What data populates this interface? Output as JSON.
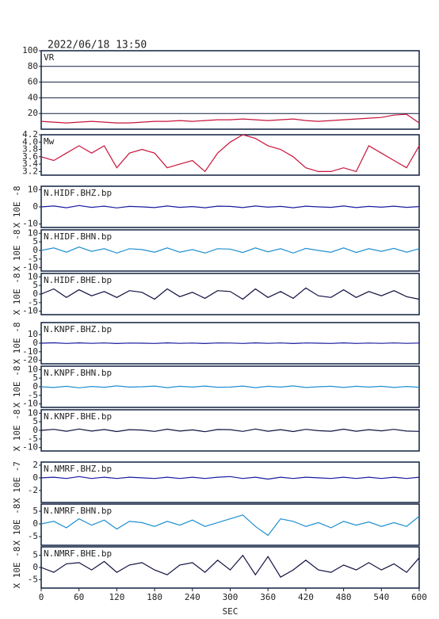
{
  "chart_data": [
    {
      "type": "line",
      "title": "2022/06/18 13:50",
      "xlim": [
        0,
        600
      ],
      "ylim": [
        0,
        100
      ],
      "yticks": [
        20,
        40,
        60,
        80,
        100
      ],
      "grid": true,
      "x": [
        0,
        20,
        40,
        60,
        80,
        100,
        120,
        140,
        160,
        180,
        200,
        220,
        240,
        260,
        280,
        300,
        320,
        340,
        360,
        380,
        400,
        420,
        440,
        460,
        480,
        500,
        520,
        540,
        560,
        580,
        600
      ],
      "series": [
        {
          "name": "VR",
          "color": "#c8143c",
          "values": [
            10,
            9,
            8,
            9,
            10,
            9,
            8,
            8,
            9,
            10,
            10,
            11,
            10,
            11,
            12,
            12,
            13,
            12,
            11,
            12,
            13,
            11,
            10,
            11,
            12,
            13,
            14,
            15,
            18,
            19,
            8
          ]
        }
      ]
    },
    {
      "type": "line",
      "xlim": [
        0,
        600
      ],
      "ylim": [
        3.1,
        4.2
      ],
      "yticks": [
        3.2,
        3.4,
        3.6,
        3.8,
        {
          "value": 4.0,
          "label": "4.0"
        },
        4.2
      ],
      "grid": false,
      "x": [
        0,
        20,
        40,
        60,
        80,
        100,
        120,
        140,
        160,
        180,
        200,
        220,
        240,
        260,
        280,
        300,
        320,
        340,
        360,
        380,
        400,
        420,
        440,
        460,
        480,
        500,
        520,
        540,
        560,
        580,
        600
      ],
      "series": [
        {
          "name": "Mw",
          "color": "#c8143c",
          "values": [
            3.6,
            3.5,
            3.7,
            3.9,
            3.7,
            3.9,
            3.3,
            3.7,
            3.8,
            3.7,
            3.3,
            3.4,
            3.5,
            3.2,
            3.7,
            4.0,
            4.2,
            4.1,
            3.9,
            3.8,
            3.6,
            3.3,
            3.2,
            3.2,
            3.3,
            3.2,
            3.9,
            3.7,
            3.5,
            3.3,
            3.9
          ]
        }
      ]
    },
    {
      "type": "line",
      "unit_label": "X 10E -8",
      "xlim": [
        0,
        600
      ],
      "ylim": [
        -12,
        12
      ],
      "yticks": [
        -10,
        0,
        10
      ],
      "grid": false,
      "x": [
        0,
        20,
        40,
        60,
        80,
        100,
        120,
        140,
        160,
        180,
        200,
        220,
        240,
        260,
        280,
        300,
        320,
        340,
        360,
        380,
        400,
        420,
        440,
        460,
        480,
        500,
        520,
        540,
        560,
        580,
        600
      ],
      "series": [
        {
          "name": "N.HIDF.BHZ.bp",
          "color": "#1a1aa0",
          "values": [
            0,
            0.5,
            -0.5,
            0.8,
            -0.3,
            0.4,
            -0.6,
            0.3,
            0,
            -0.4,
            0.5,
            -0.3,
            0.2,
            -0.5,
            0.4,
            0.3,
            -0.4,
            0.5,
            -0.2,
            0.3,
            -0.5,
            0.4,
            0,
            -0.3,
            0.5,
            -0.4,
            0.3,
            -0.2,
            0.4,
            -0.3,
            0.2
          ]
        }
      ]
    },
    {
      "type": "line",
      "unit_label": "X 10E -8",
      "xlim": [
        0,
        600
      ],
      "ylim": [
        -12,
        12
      ],
      "yticks": [
        -10,
        -5,
        0,
        5,
        10
      ],
      "grid": false,
      "x": [
        0,
        20,
        40,
        60,
        80,
        100,
        120,
        140,
        160,
        180,
        200,
        220,
        240,
        260,
        280,
        300,
        320,
        340,
        360,
        380,
        400,
        420,
        440,
        460,
        480,
        500,
        520,
        540,
        560,
        580,
        600
      ],
      "series": [
        {
          "name": "N.HIDF.BHN.bp",
          "color": "#2090d0",
          "values": [
            0,
            1.5,
            -1,
            2,
            -0.5,
            1,
            -1.5,
            1,
            0.5,
            -1,
            1.5,
            -1,
            0.5,
            -1.5,
            1,
            0.8,
            -1.2,
            1.5,
            -0.8,
            1,
            -1.5,
            1.2,
            0,
            -1,
            1.5,
            -1.2,
            1,
            -0.5,
            1.2,
            -1,
            1
          ]
        }
      ]
    },
    {
      "type": "line",
      "unit_label": "X 10E -8",
      "xlim": [
        0,
        600
      ],
      "ylim": [
        -12,
        12
      ],
      "yticks": [
        -10,
        -5,
        0,
        5,
        10
      ],
      "grid": false,
      "x": [
        0,
        20,
        40,
        60,
        80,
        100,
        120,
        140,
        160,
        180,
        200,
        220,
        240,
        260,
        280,
        300,
        320,
        340,
        360,
        380,
        400,
        420,
        440,
        460,
        480,
        500,
        520,
        540,
        560,
        580,
        600
      ],
      "series": [
        {
          "name": "N.HIDF.BHE.bp",
          "color": "#101040",
          "values": [
            0,
            3,
            -2,
            2.5,
            -1,
            1.5,
            -2,
            2,
            1,
            -3,
            3,
            -1.5,
            1,
            -2.5,
            2,
            1.5,
            -3,
            3,
            -2,
            1.5,
            -2.5,
            3.5,
            -1,
            -2,
            2.5,
            -2,
            1.5,
            -1,
            2,
            -1.5,
            -3
          ]
        }
      ]
    },
    {
      "type": "line",
      "unit_label": "X 10E -8",
      "xlim": [
        0,
        600
      ],
      "ylim": [
        -24,
        24
      ],
      "yticks": [
        -20,
        -10,
        0,
        10
      ],
      "grid": false,
      "x": [
        0,
        20,
        40,
        60,
        80,
        100,
        120,
        140,
        160,
        180,
        200,
        220,
        240,
        260,
        280,
        300,
        320,
        340,
        360,
        380,
        400,
        420,
        440,
        460,
        480,
        500,
        520,
        540,
        560,
        580,
        600
      ],
      "series": [
        {
          "name": "N.KNPF.BHZ.bp",
          "color": "#1a1aa0",
          "values": [
            0,
            0.5,
            -0.3,
            0.4,
            -0.2,
            0.3,
            -0.4,
            0.2,
            0,
            -0.3,
            0.4,
            -0.2,
            0.2,
            -0.4,
            0.3,
            0.2,
            -0.3,
            0.4,
            -0.2,
            0.3,
            -0.4,
            0.3,
            0,
            -0.3,
            0.4,
            -0.3,
            0.2,
            -0.2,
            0.3,
            -0.2,
            0.2
          ]
        }
      ]
    },
    {
      "type": "line",
      "unit_label": "X 10E -8",
      "xlim": [
        0,
        600
      ],
      "ylim": [
        -12,
        12
      ],
      "yticks": [
        -10,
        -5,
        0,
        5,
        10
      ],
      "grid": false,
      "x": [
        0,
        20,
        40,
        60,
        80,
        100,
        120,
        140,
        160,
        180,
        200,
        220,
        240,
        260,
        280,
        300,
        320,
        340,
        360,
        380,
        400,
        420,
        440,
        460,
        480,
        500,
        520,
        540,
        560,
        580,
        600
      ],
      "series": [
        {
          "name": "N.KNPF.BHN.bp",
          "color": "#2090d0",
          "values": [
            0,
            -0.4,
            0.3,
            -0.6,
            0.2,
            -0.3,
            0.5,
            -0.2,
            0,
            0.4,
            -0.5,
            0.3,
            -0.2,
            0.4,
            -0.3,
            -0.2,
            0.4,
            -0.5,
            0.3,
            -0.2,
            0.5,
            -0.4,
            0,
            0.3,
            -0.4,
            0.3,
            -0.2,
            0.3,
            -0.4,
            0.2,
            -0.3
          ]
        }
      ]
    },
    {
      "type": "line",
      "unit_label": "X 10E -8",
      "xlim": [
        0,
        600
      ],
      "ylim": [
        -12,
        12
      ],
      "yticks": [
        -10,
        -5,
        0,
        5,
        10
      ],
      "grid": false,
      "x": [
        0,
        20,
        40,
        60,
        80,
        100,
        120,
        140,
        160,
        180,
        200,
        220,
        240,
        260,
        280,
        300,
        320,
        340,
        360,
        380,
        400,
        420,
        440,
        460,
        480,
        500,
        520,
        540,
        560,
        580,
        600
      ],
      "series": [
        {
          "name": "N.KNPF.BHE.bp",
          "color": "#101040",
          "values": [
            0,
            0.6,
            -0.5,
            0.8,
            -0.4,
            0.5,
            -0.7,
            0.4,
            0.2,
            -0.6,
            0.7,
            -0.4,
            0.3,
            -0.8,
            0.5,
            0.4,
            -0.6,
            0.8,
            -0.5,
            0.4,
            -0.7,
            0.6,
            -0.2,
            -0.5,
            0.7,
            -0.5,
            0.4,
            -0.3,
            0.6,
            -0.4,
            -0.6
          ]
        }
      ]
    },
    {
      "type": "line",
      "unit_label": "X 10E -7",
      "xlim": [
        0,
        600
      ],
      "ylim": [
        -3.9,
        2.5
      ],
      "yticks": [
        -2,
        0,
        2
      ],
      "grid": false,
      "x": [
        0,
        20,
        40,
        60,
        80,
        100,
        120,
        140,
        160,
        180,
        200,
        220,
        240,
        260,
        280,
        300,
        320,
        340,
        360,
        380,
        400,
        420,
        440,
        460,
        480,
        500,
        520,
        540,
        560,
        580,
        600
      ],
      "series": [
        {
          "name": "N.NMRF.BHZ.bp",
          "color": "#1a1aa0",
          "values": [
            0,
            0.1,
            -0.1,
            0.2,
            -0.1,
            0.1,
            -0.1,
            0.1,
            0,
            -0.1,
            0.1,
            -0.1,
            0.1,
            -0.1,
            0.1,
            0.2,
            -0.1,
            0.1,
            -0.2,
            0.1,
            -0.1,
            0.1,
            0,
            -0.1,
            0.1,
            -0.1,
            0.1,
            -0.1,
            0.1,
            -0.1,
            0.1
          ]
        }
      ]
    },
    {
      "type": "line",
      "unit_label": "X 10E -8",
      "xlim": [
        0,
        600
      ],
      "ylim": [
        -8.4,
        7.8
      ],
      "yticks": [
        -5,
        0,
        5
      ],
      "grid": false,
      "x": [
        0,
        20,
        40,
        60,
        80,
        100,
        120,
        140,
        160,
        180,
        200,
        220,
        240,
        260,
        280,
        300,
        320,
        340,
        360,
        380,
        400,
        420,
        440,
        460,
        480,
        500,
        520,
        540,
        560,
        580,
        600
      ],
      "series": [
        {
          "name": "N.NMRF.BHN.bp",
          "color": "#2090d0",
          "values": [
            0,
            1,
            -1.5,
            2,
            -0.5,
            1.5,
            -2,
            1,
            0.5,
            -1,
            1,
            -0.5,
            1.5,
            -1,
            0.5,
            2,
            3.5,
            -1,
            -4.5,
            2,
            1,
            -1,
            0.5,
            -1.5,
            1,
            -0.5,
            0.8,
            -1,
            0.5,
            -1,
            3
          ]
        }
      ]
    },
    {
      "type": "line",
      "unit_label": "X 10E -8",
      "xlim": [
        0,
        600
      ],
      "ylim": [
        -8.5,
        8.5
      ],
      "yticks": [
        -5,
        0,
        5
      ],
      "grid": false,
      "x": [
        0,
        20,
        40,
        60,
        80,
        100,
        120,
        140,
        160,
        180,
        200,
        220,
        240,
        260,
        280,
        300,
        320,
        340,
        360,
        380,
        400,
        420,
        440,
        460,
        480,
        500,
        520,
        540,
        560,
        580,
        600
      ],
      "xticks": [
        0,
        60,
        120,
        180,
        240,
        300,
        360,
        420,
        480,
        540,
        600
      ],
      "xlabel": "SEC",
      "series": [
        {
          "name": "N.NMRF.BHE.bp",
          "color": "#101040",
          "values": [
            0,
            -2,
            1.5,
            2,
            -1,
            2.5,
            -2,
            1,
            2,
            -1,
            -3,
            1,
            2,
            -2,
            3,
            -1,
            5,
            -3,
            4.5,
            -4,
            -1,
            3,
            -1,
            -2,
            1,
            -1,
            2,
            -1,
            1.5,
            -2,
            4
          ]
        }
      ]
    }
  ]
}
